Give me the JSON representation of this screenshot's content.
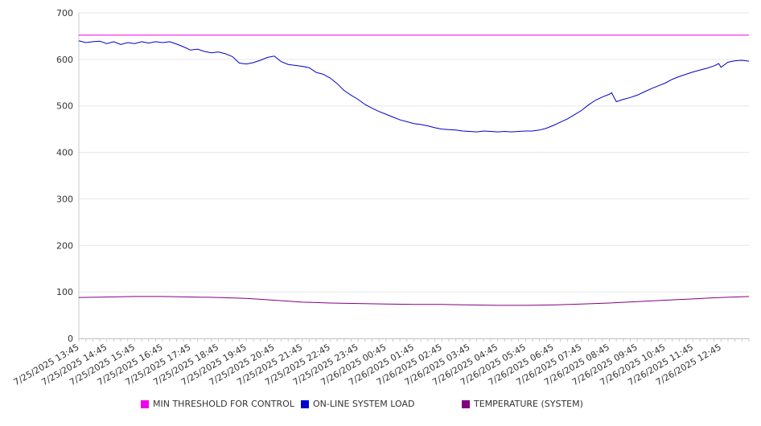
{
  "chart_data": {
    "type": "line",
    "title": "",
    "xlabel": "",
    "ylabel": "",
    "ylim": [
      0,
      700
    ],
    "yticks": [
      0,
      100,
      200,
      300,
      400,
      500,
      600,
      700
    ],
    "grid": "horizontal",
    "legend_position": "bottom",
    "x_tick_labels": [
      "7/25/2025 13:45",
      "7/25/2025 14:45",
      "7/25/2025 15:45",
      "7/25/2025 16:45",
      "7/25/2025 17:45",
      "7/25/2025 18:45",
      "7/25/2025 19:45",
      "7/25/2025 20:45",
      "7/25/2025 21:45",
      "7/25/2025 22:45",
      "7/25/2025 23:45",
      "7/26/2025 00:45",
      "7/26/2025 01:45",
      "7/26/2025 02:45",
      "7/26/2025 03:45",
      "7/26/2025 04:45",
      "7/26/2025 05:45",
      "7/26/2025 06:45",
      "7/26/2025 07:45",
      "7/26/2025 08:45",
      "7/26/2025 09:45",
      "7/26/2025 10:45",
      "7/26/2025 11:45",
      "7/26/2025 12:45"
    ],
    "x_range": [
      "7/25/2025 13:45",
      "7/26/2025 13:45"
    ],
    "series": [
      {
        "name": "MIN THRESHOLD FOR CONTROL",
        "color": "#ee00ee",
        "points": [
          [
            "7/25/2025 13:45",
            652
          ],
          [
            "7/26/2025 13:45",
            652
          ]
        ]
      },
      {
        "name": "ON-LINE SYSTEM LOAD",
        "color": "#0000cc",
        "points": [
          [
            "7/25/2025 13:45",
            640
          ],
          [
            "7/25/2025 14:00",
            636
          ],
          [
            "7/25/2025 14:15",
            638
          ],
          [
            "7/25/2025 14:30",
            639
          ],
          [
            "7/25/2025 14:45",
            634
          ],
          [
            "7/25/2025 15:00",
            638
          ],
          [
            "7/25/2025 15:15",
            632
          ],
          [
            "7/25/2025 15:30",
            636
          ],
          [
            "7/25/2025 15:45",
            634
          ],
          [
            "7/25/2025 16:00",
            638
          ],
          [
            "7/25/2025 16:15",
            635
          ],
          [
            "7/25/2025 16:30",
            638
          ],
          [
            "7/25/2025 16:45",
            636
          ],
          [
            "7/25/2025 17:00",
            638
          ],
          [
            "7/25/2025 17:15",
            633
          ],
          [
            "7/25/2025 17:30",
            627
          ],
          [
            "7/25/2025 17:45",
            620
          ],
          [
            "7/25/2025 18:00",
            622
          ],
          [
            "7/25/2025 18:15",
            617
          ],
          [
            "7/25/2025 18:30",
            614
          ],
          [
            "7/25/2025 18:45",
            616
          ],
          [
            "7/25/2025 19:00",
            612
          ],
          [
            "7/25/2025 19:15",
            606
          ],
          [
            "7/25/2025 19:30",
            592
          ],
          [
            "7/25/2025 19:45",
            590
          ],
          [
            "7/25/2025 20:00",
            593
          ],
          [
            "7/25/2025 20:15",
            598
          ],
          [
            "7/25/2025 20:30",
            604
          ],
          [
            "7/25/2025 20:45",
            607
          ],
          [
            "7/25/2025 21:00",
            595
          ],
          [
            "7/25/2025 21:15",
            589
          ],
          [
            "7/25/2025 21:30",
            587
          ],
          [
            "7/25/2025 21:45",
            585
          ],
          [
            "7/25/2025 22:00",
            582
          ],
          [
            "7/25/2025 22:15",
            572
          ],
          [
            "7/25/2025 22:30",
            568
          ],
          [
            "7/25/2025 22:45",
            560
          ],
          [
            "7/25/2025 23:00",
            548
          ],
          [
            "7/25/2025 23:15",
            533
          ],
          [
            "7/25/2025 23:30",
            523
          ],
          [
            "7/25/2025 23:45",
            514
          ],
          [
            "7/26/2025 00:00",
            503
          ],
          [
            "7/26/2025 00:15",
            495
          ],
          [
            "7/26/2025 00:30",
            488
          ],
          [
            "7/26/2025 00:45",
            482
          ],
          [
            "7/26/2025 01:00",
            476
          ],
          [
            "7/26/2025 01:15",
            470
          ],
          [
            "7/26/2025 01:30",
            466
          ],
          [
            "7/26/2025 01:45",
            462
          ],
          [
            "7/26/2025 02:00",
            460
          ],
          [
            "7/26/2025 02:15",
            457
          ],
          [
            "7/26/2025 02:30",
            453
          ],
          [
            "7/26/2025 02:45",
            450
          ],
          [
            "7/26/2025 03:00",
            449
          ],
          [
            "7/26/2025 03:15",
            448
          ],
          [
            "7/26/2025 03:30",
            446
          ],
          [
            "7/26/2025 03:45",
            445
          ],
          [
            "7/26/2025 04:00",
            444
          ],
          [
            "7/26/2025 04:15",
            446
          ],
          [
            "7/26/2025 04:30",
            445
          ],
          [
            "7/26/2025 04:45",
            444
          ],
          [
            "7/26/2025 05:00",
            445
          ],
          [
            "7/26/2025 05:15",
            444
          ],
          [
            "7/26/2025 05:30",
            445
          ],
          [
            "7/26/2025 05:45",
            446
          ],
          [
            "7/26/2025 06:00",
            446
          ],
          [
            "7/26/2025 06:15",
            448
          ],
          [
            "7/26/2025 06:30",
            452
          ],
          [
            "7/26/2025 06:45",
            458
          ],
          [
            "7/26/2025 07:00",
            465
          ],
          [
            "7/26/2025 07:15",
            472
          ],
          [
            "7/26/2025 07:30",
            481
          ],
          [
            "7/26/2025 07:45",
            490
          ],
          [
            "7/26/2025 08:00",
            502
          ],
          [
            "7/26/2025 08:15",
            512
          ],
          [
            "7/26/2025 08:30",
            519
          ],
          [
            "7/26/2025 08:45",
            525
          ],
          [
            "7/26/2025 08:50",
            528
          ],
          [
            "7/26/2025 09:00",
            509
          ],
          [
            "7/26/2025 09:15",
            514
          ],
          [
            "7/26/2025 09:30",
            518
          ],
          [
            "7/26/2025 09:45",
            523
          ],
          [
            "7/26/2025 10:00",
            530
          ],
          [
            "7/26/2025 10:15",
            537
          ],
          [
            "7/26/2025 10:30",
            543
          ],
          [
            "7/26/2025 10:45",
            549
          ],
          [
            "7/26/2025 11:00",
            557
          ],
          [
            "7/26/2025 11:15",
            563
          ],
          [
            "7/26/2025 11:30",
            568
          ],
          [
            "7/26/2025 11:45",
            573
          ],
          [
            "7/26/2025 12:00",
            577
          ],
          [
            "7/26/2025 12:15",
            581
          ],
          [
            "7/26/2025 12:30",
            586
          ],
          [
            "7/26/2025 12:40",
            591
          ],
          [
            "7/26/2025 12:45",
            583
          ],
          [
            "7/26/2025 13:00",
            594
          ],
          [
            "7/26/2025 13:15",
            597
          ],
          [
            "7/26/2025 13:30",
            598
          ],
          [
            "7/26/2025 13:45",
            596
          ]
        ]
      },
      {
        "name": "TEMPERATURE (SYSTEM)",
        "color": "#800080",
        "points": [
          [
            "7/25/2025 13:45",
            88
          ],
          [
            "7/25/2025 14:45",
            89
          ],
          [
            "7/25/2025 15:45",
            90
          ],
          [
            "7/25/2025 16:45",
            90
          ],
          [
            "7/25/2025 17:45",
            89
          ],
          [
            "7/25/2025 18:45",
            88
          ],
          [
            "7/25/2025 19:45",
            86
          ],
          [
            "7/25/2025 20:45",
            82
          ],
          [
            "7/25/2025 21:45",
            78
          ],
          [
            "7/25/2025 22:45",
            76
          ],
          [
            "7/25/2025 23:45",
            75
          ],
          [
            "7/26/2025 00:45",
            74
          ],
          [
            "7/26/2025 01:45",
            73
          ],
          [
            "7/26/2025 02:45",
            73
          ],
          [
            "7/26/2025 03:45",
            72
          ],
          [
            "7/26/2025 04:45",
            71
          ],
          [
            "7/26/2025 05:45",
            71
          ],
          [
            "7/26/2025 06:45",
            72
          ],
          [
            "7/26/2025 07:45",
            74
          ],
          [
            "7/26/2025 08:45",
            76
          ],
          [
            "7/26/2025 09:45",
            79
          ],
          [
            "7/26/2025 10:45",
            82
          ],
          [
            "7/26/2025 11:45",
            85
          ],
          [
            "7/26/2025 12:45",
            88
          ],
          [
            "7/26/2025 13:45",
            90
          ]
        ]
      }
    ]
  }
}
